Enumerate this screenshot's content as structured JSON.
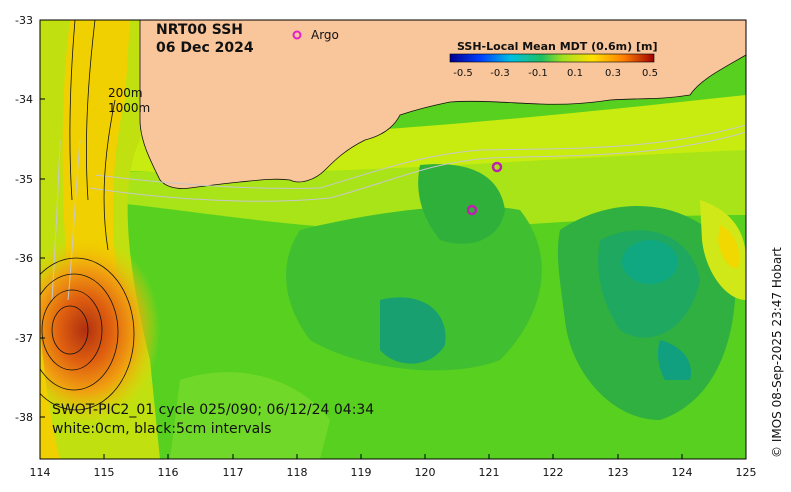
{
  "title": {
    "line1": "NRT00 SSH",
    "line2": "06 Dec 2024"
  },
  "legend": {
    "argo_symbol": "o",
    "argo_label": "Argo"
  },
  "colorbar": {
    "title": "SSH-Local Mean MDT (0.6m) [m]",
    "tick_labels": [
      "-0.5",
      "-0.3",
      "-0.1",
      "0.1",
      "0.3",
      "0.5"
    ]
  },
  "isobaths": {
    "label1": "200m",
    "label2": "1000m"
  },
  "caption": {
    "line1": "SWOT-PIC2_01 cycle 025/090; 06/12/24 04:34",
    "line2": "white:0cm, black:5cm intervals"
  },
  "credit": "© IMOS 08-Sep-2025 23:47 Hobart",
  "axes": {
    "x_ticks": [
      "114",
      "115",
      "116",
      "117",
      "118",
      "119",
      "120",
      "121",
      "122",
      "123",
      "124",
      "125"
    ],
    "y_ticks": [
      "-33",
      "-34",
      "-35",
      "-36",
      "-37",
      "-38"
    ]
  },
  "colors": {
    "land": "#f9c59a",
    "argo": "#e020c8",
    "frame": "#000000"
  }
}
